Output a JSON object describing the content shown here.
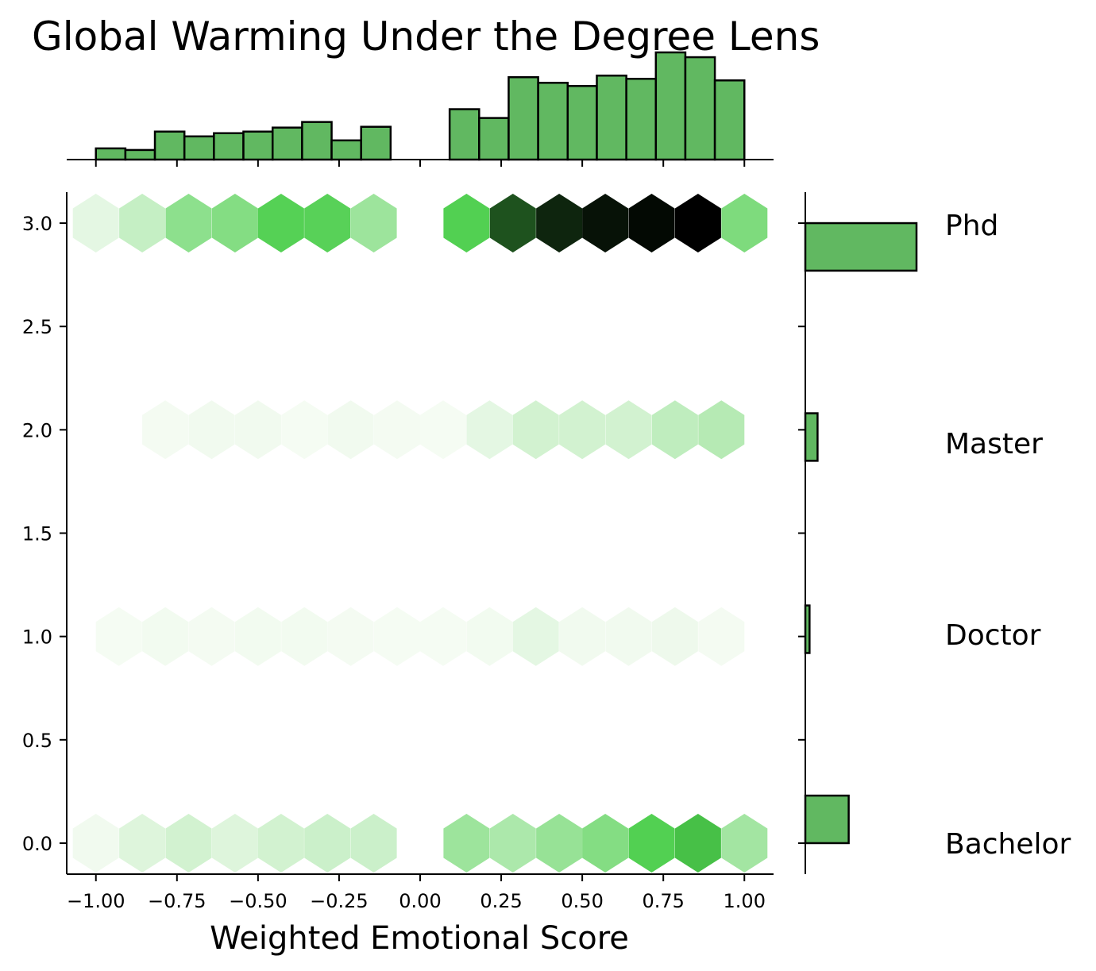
{
  "chart_data": {
    "type": "hexbin-joint",
    "title": "Global Warming Under the Degree Lens",
    "xlabel": "Weighted Emotional Score",
    "ylabel": "",
    "xlim": [
      -1.09,
      1.09
    ],
    "ylim": [
      -0.15,
      3.15
    ],
    "x_ticks": [
      -1.0,
      -0.75,
      -0.5,
      -0.25,
      0.0,
      0.25,
      0.5,
      0.75,
      1.0
    ],
    "x_tick_labels": [
      "−1.00",
      "−0.75",
      "−0.50",
      "−0.25",
      "0.00",
      "0.25",
      "0.50",
      "0.75",
      "1.00"
    ],
    "y_ticks": [
      0.0,
      0.5,
      1.0,
      1.5,
      2.0,
      2.5,
      3.0
    ],
    "y_tick_labels": [
      "0.0",
      "0.5",
      "1.0",
      "1.5",
      "2.0",
      "2.5",
      "3.0"
    ],
    "category_labels": [
      {
        "label": "Phd",
        "y": 3.0
      },
      {
        "label": "Master",
        "y": 2.0
      },
      {
        "label": "Doctor",
        "y": 1.0
      },
      {
        "label": "Bachelor",
        "y": 0.0
      }
    ],
    "hexbins": [
      {
        "y": 3.0,
        "x": [
          -1.0,
          -0.857,
          -0.714,
          -0.571,
          -0.429,
          -0.286,
          -0.143,
          0.143,
          0.286,
          0.429,
          0.571,
          0.714,
          0.857,
          1.0
        ],
        "intensity": [
          0.06,
          0.16,
          0.34,
          0.37,
          0.52,
          0.51,
          0.29,
          0.53,
          0.82,
          0.92,
          0.96,
          0.98,
          1.0,
          0.39
        ]
      },
      {
        "y": 2.0,
        "x": [
          -0.786,
          -0.643,
          -0.5,
          -0.357,
          -0.214,
          -0.071,
          0.071,
          0.214,
          0.357,
          0.5,
          0.643,
          0.786,
          0.929
        ],
        "intensity": [
          0.01,
          0.02,
          0.02,
          0.005,
          0.02,
          0.01,
          0.005,
          0.06,
          0.12,
          0.12,
          0.12,
          0.18,
          0.21
        ]
      },
      {
        "y": 1.0,
        "x": [
          -0.929,
          -0.786,
          -0.643,
          -0.5,
          -0.357,
          -0.214,
          -0.071,
          0.071,
          0.214,
          0.357,
          0.5,
          0.643,
          0.786,
          0.929
        ],
        "intensity": [
          0.005,
          0.015,
          0.01,
          0.015,
          0.015,
          0.01,
          0.005,
          0.005,
          0.015,
          0.06,
          0.02,
          0.02,
          0.03,
          0.01
        ]
      },
      {
        "y": 0.0,
        "x": [
          -1.0,
          -0.857,
          -0.714,
          -0.571,
          -0.429,
          -0.286,
          -0.143,
          0.143,
          0.286,
          0.429,
          0.571,
          0.714,
          0.857,
          1.0
        ],
        "intensity": [
          0.02,
          0.08,
          0.12,
          0.08,
          0.12,
          0.14,
          0.14,
          0.29,
          0.24,
          0.31,
          0.37,
          0.53,
          0.58,
          0.27
        ]
      }
    ],
    "x_marginal": {
      "bins": [
        {
          "x0": -1.0,
          "x1": -0.909,
          "count": 14
        },
        {
          "x0": -0.909,
          "x1": -0.818,
          "count": 12
        },
        {
          "x0": -0.818,
          "x1": -0.727,
          "count": 35
        },
        {
          "x0": -0.727,
          "x1": -0.636,
          "count": 29
        },
        {
          "x0": -0.636,
          "x1": -0.545,
          "count": 33
        },
        {
          "x0": -0.545,
          "x1": -0.455,
          "count": 35
        },
        {
          "x0": -0.455,
          "x1": -0.364,
          "count": 40
        },
        {
          "x0": -0.364,
          "x1": -0.273,
          "count": 47
        },
        {
          "x0": -0.273,
          "x1": -0.182,
          "count": 24
        },
        {
          "x0": -0.182,
          "x1": -0.091,
          "count": 41
        },
        {
          "x0": 0.091,
          "x1": 0.182,
          "count": 63
        },
        {
          "x0": 0.182,
          "x1": 0.273,
          "count": 52
        },
        {
          "x0": 0.273,
          "x1": 0.364,
          "count": 103
        },
        {
          "x0": 0.364,
          "x1": 0.455,
          "count": 96
        },
        {
          "x0": 0.455,
          "x1": 0.545,
          "count": 92
        },
        {
          "x0": 0.545,
          "x1": 0.636,
          "count": 105
        },
        {
          "x0": 0.636,
          "x1": 0.727,
          "count": 101
        },
        {
          "x0": 0.727,
          "x1": 0.818,
          "count": 134
        },
        {
          "x0": 0.818,
          "x1": 0.909,
          "count": 128
        },
        {
          "x0": 0.909,
          "x1": 1.0,
          "count": 99
        }
      ]
    },
    "y_marginal": {
      "bins": [
        {
          "y0": 2.77,
          "y1": 3.0,
          "count": 1000
        },
        {
          "y0": 1.85,
          "y1": 2.08,
          "count": 110
        },
        {
          "y0": 0.92,
          "y1": 1.15,
          "count": 38
        },
        {
          "y0": 0.0,
          "y1": 0.23,
          "count": 390
        }
      ]
    },
    "colors": {
      "bar_fill": "#61b861",
      "bar_edge": "#000000",
      "hex_light": "#f7fcf5",
      "hex_mid": "#4cce4c",
      "hex_dark": "#000000"
    },
    "grid": false,
    "legend": "none"
  }
}
